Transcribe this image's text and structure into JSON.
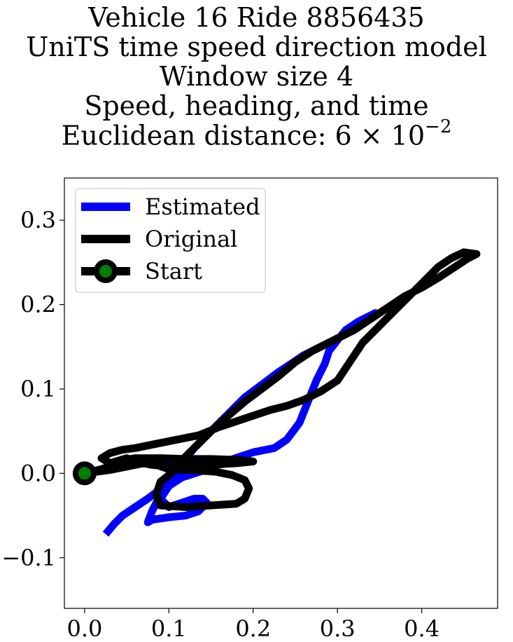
{
  "chart_data": {
    "type": "line",
    "title_lines": [
      "Vehicle 16 Ride 8856435",
      "UniTS time speed direction model",
      "Window size 4",
      "Speed, heading, and time",
      "Euclidean distance: 6 × 10",
      "−2"
    ],
    "xlabel": "",
    "ylabel": "",
    "xlim": [
      -0.024,
      0.49
    ],
    "ylim": [
      -0.16,
      0.35
    ],
    "xticks": [
      0.0,
      0.1,
      0.2,
      0.3,
      0.4
    ],
    "xtick_labels": [
      "0.0",
      "0.1",
      "0.2",
      "0.3",
      "0.4"
    ],
    "yticks": [
      -0.1,
      0.0,
      0.1,
      0.2,
      0.3
    ],
    "ytick_labels": [
      "−0.1",
      "0.0",
      "0.1",
      "0.2",
      "0.3"
    ],
    "grid": false,
    "legend": {
      "placement": "upper-left",
      "entries": [
        {
          "label": "Estimated",
          "color": "#0000ff",
          "kind": "line"
        },
        {
          "label": "Original",
          "color": "#000000",
          "kind": "line"
        },
        {
          "label": "Start",
          "color": "#000000",
          "marker_color": "#008000",
          "kind": "marker"
        }
      ]
    },
    "series": [
      {
        "name": "Estimated",
        "color": "#0000ff",
        "points": [
          [
            0.0,
            0.0
          ],
          [
            0.02,
            0.005
          ],
          [
            0.04,
            0.012
          ],
          [
            0.05,
            0.015
          ],
          [
            0.07,
            0.012
          ],
          [
            0.1,
            0.01
          ],
          [
            0.12,
            0.01
          ],
          [
            0.14,
            0.01
          ],
          [
            0.15,
            0.012
          ],
          [
            0.13,
            0.007
          ],
          [
            0.11,
            0.002
          ],
          [
            0.1,
            -0.01
          ],
          [
            0.09,
            -0.025
          ],
          [
            0.08,
            -0.045
          ],
          [
            0.075,
            -0.058
          ],
          [
            0.08,
            -0.055
          ],
          [
            0.1,
            -0.052
          ],
          [
            0.12,
            -0.05
          ],
          [
            0.135,
            -0.045
          ],
          [
            0.145,
            -0.035
          ],
          [
            0.14,
            -0.03
          ],
          [
            0.13,
            -0.03
          ],
          [
            0.115,
            -0.035
          ],
          [
            0.1,
            -0.04
          ],
          [
            0.09,
            -0.03
          ],
          [
            0.1,
            -0.015
          ],
          [
            0.115,
            -0.005
          ],
          [
            0.14,
            0.003
          ],
          [
            0.17,
            0.015
          ],
          [
            0.2,
            0.025
          ],
          [
            0.225,
            0.03
          ],
          [
            0.24,
            0.04
          ],
          [
            0.255,
            0.06
          ],
          [
            0.265,
            0.085
          ],
          [
            0.275,
            0.11
          ],
          [
            0.285,
            0.13
          ],
          [
            0.29,
            0.145
          ],
          [
            0.3,
            0.158
          ],
          [
            0.31,
            0.17
          ],
          [
            0.325,
            0.18
          ],
          [
            0.335,
            0.185
          ],
          [
            0.345,
            0.19
          ],
          [
            0.335,
            0.182
          ],
          [
            0.32,
            0.17
          ],
          [
            0.3,
            0.16
          ],
          [
            0.28,
            0.15
          ],
          [
            0.26,
            0.14
          ],
          [
            0.245,
            0.13
          ],
          [
            0.23,
            0.12
          ],
          [
            0.21,
            0.105
          ],
          [
            0.19,
            0.09
          ],
          [
            0.17,
            0.07
          ],
          [
            0.15,
            0.05
          ],
          [
            0.13,
            0.03
          ],
          [
            0.11,
            0.005
          ],
          [
            0.095,
            -0.015
          ],
          [
            0.075,
            -0.03
          ],
          [
            0.06,
            -0.04
          ],
          [
            0.045,
            -0.05
          ],
          [
            0.035,
            -0.06
          ],
          [
            0.025,
            -0.072
          ]
        ]
      },
      {
        "name": "Original",
        "color": "#000000",
        "points": [
          [
            0.0,
            0.0
          ],
          [
            0.02,
            0.005
          ],
          [
            0.035,
            0.01
          ],
          [
            0.045,
            0.015
          ],
          [
            0.06,
            0.018
          ],
          [
            0.09,
            0.018
          ],
          [
            0.12,
            0.017
          ],
          [
            0.15,
            0.017
          ],
          [
            0.18,
            0.016
          ],
          [
            0.2,
            0.014
          ],
          [
            0.18,
            0.012
          ],
          [
            0.15,
            0.01
          ],
          [
            0.12,
            0.009
          ],
          [
            0.1,
            0.008
          ],
          [
            0.08,
            0.01
          ],
          [
            0.065,
            0.013
          ],
          [
            0.05,
            0.018
          ],
          [
            0.04,
            0.015
          ],
          [
            0.03,
            0.012
          ],
          [
            0.02,
            0.018
          ],
          [
            0.03,
            0.024
          ],
          [
            0.045,
            0.028
          ],
          [
            0.06,
            0.03
          ],
          [
            0.085,
            0.035
          ],
          [
            0.11,
            0.04
          ],
          [
            0.135,
            0.045
          ],
          [
            0.16,
            0.055
          ],
          [
            0.19,
            0.065
          ],
          [
            0.22,
            0.075
          ],
          [
            0.24,
            0.08
          ],
          [
            0.26,
            0.087
          ],
          [
            0.28,
            0.097
          ],
          [
            0.3,
            0.11
          ],
          [
            0.31,
            0.125
          ],
          [
            0.32,
            0.14
          ],
          [
            0.33,
            0.155
          ],
          [
            0.345,
            0.17
          ],
          [
            0.36,
            0.185
          ],
          [
            0.375,
            0.2
          ],
          [
            0.39,
            0.215
          ],
          [
            0.405,
            0.23
          ],
          [
            0.42,
            0.245
          ],
          [
            0.435,
            0.255
          ],
          [
            0.45,
            0.262
          ],
          [
            0.465,
            0.26
          ],
          [
            0.455,
            0.255
          ],
          [
            0.44,
            0.245
          ],
          [
            0.42,
            0.232
          ],
          [
            0.4,
            0.22
          ],
          [
            0.38,
            0.21
          ],
          [
            0.35,
            0.19
          ],
          [
            0.32,
            0.17
          ],
          [
            0.29,
            0.155
          ],
          [
            0.27,
            0.145
          ],
          [
            0.25,
            0.132
          ],
          [
            0.23,
            0.115
          ],
          [
            0.21,
            0.1
          ],
          [
            0.19,
            0.085
          ],
          [
            0.17,
            0.068
          ],
          [
            0.15,
            0.05
          ],
          [
            0.13,
            0.03
          ],
          [
            0.115,
            0.015
          ],
          [
            0.105,
            0.002
          ],
          [
            0.09,
            -0.01
          ],
          [
            0.085,
            -0.025
          ],
          [
            0.09,
            -0.038
          ],
          [
            0.12,
            -0.04
          ],
          [
            0.15,
            -0.038
          ],
          [
            0.18,
            -0.036
          ],
          [
            0.19,
            -0.03
          ],
          [
            0.195,
            -0.018
          ],
          [
            0.19,
            -0.008
          ],
          [
            0.175,
            -0.002
          ],
          [
            0.155,
            0.002
          ],
          [
            0.125,
            0.004
          ],
          [
            0.1,
            0.005
          ],
          [
            0.085,
            0.01
          ],
          [
            0.07,
            0.012
          ],
          [
            0.05,
            0.008
          ],
          [
            0.03,
            0.004
          ],
          [
            0.0,
            0.0
          ]
        ]
      }
    ],
    "start_marker": {
      "x": 0.0,
      "y": 0.0,
      "edge_color": "#000000",
      "face_color": "#008000"
    }
  }
}
